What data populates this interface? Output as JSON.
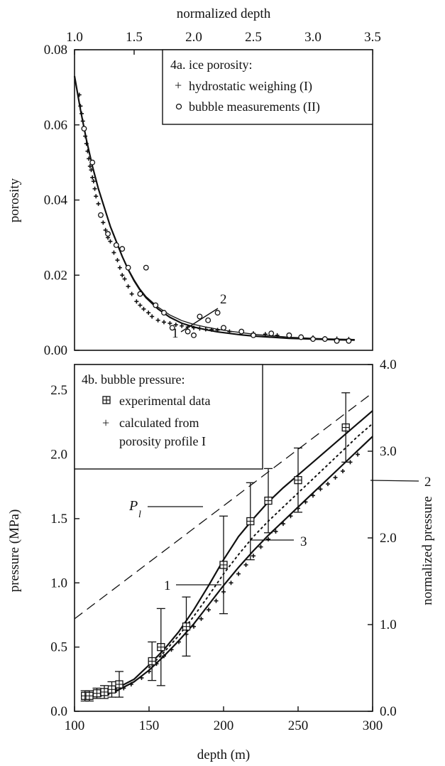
{
  "chart_data": [
    {
      "type": "scatter",
      "panel": "4a",
      "title": "4a. ice porosity:",
      "xlabel": "normalized depth",
      "ylabel": "porosity",
      "xlim": [
        1.0,
        3.5
      ],
      "ylim": [
        0.0,
        0.08
      ],
      "x_ticks": [
        "1.0",
        "1.5",
        "2.0",
        "2.5",
        "3.0",
        "3.5"
      ],
      "y_ticks": [
        "0.00",
        "0.02",
        "0.04",
        "0.06",
        "0.08"
      ],
      "legend_position": "top-right",
      "series": [
        {
          "name": "hydrostatic weighing (I)",
          "marker": "plus",
          "x": [
            1.04,
            1.05,
            1.06,
            1.07,
            1.08,
            1.09,
            1.1,
            1.11,
            1.12,
            1.13,
            1.14,
            1.15,
            1.16,
            1.17,
            1.18,
            1.2,
            1.22,
            1.24,
            1.26,
            1.28,
            1.3,
            1.33,
            1.36,
            1.38,
            1.4,
            1.42,
            1.45,
            1.48,
            1.52,
            1.55,
            1.58,
            1.62,
            1.65,
            1.7,
            1.75,
            1.8,
            1.85,
            1.9,
            1.95,
            2.0,
            2.05,
            2.1,
            2.15,
            2.2,
            2.3,
            2.4,
            2.5,
            2.6,
            2.7,
            2.8,
            2.9,
            3.0,
            3.1,
            3.2,
            3.3
          ],
          "y": [
            0.068,
            0.065,
            0.063,
            0.061,
            0.059,
            0.057,
            0.055,
            0.053,
            0.051,
            0.049,
            0.048,
            0.046,
            0.045,
            0.043,
            0.041,
            0.039,
            0.036,
            0.034,
            0.032,
            0.03,
            0.029,
            0.026,
            0.024,
            0.022,
            0.02,
            0.019,
            0.017,
            0.015,
            0.013,
            0.012,
            0.011,
            0.01,
            0.009,
            0.008,
            0.0075,
            0.0072,
            0.0068,
            0.0065,
            0.0062,
            0.006,
            0.0058,
            0.0056,
            0.0055,
            0.0054,
            0.005,
            0.0047,
            0.0045,
            0.0043,
            0.004,
            0.0038,
            0.0036,
            0.0034,
            0.0032,
            0.0031,
            0.003
          ]
        },
        {
          "name": "bubble measurements (II)",
          "marker": "circle",
          "x": [
            1.08,
            1.15,
            1.22,
            1.28,
            1.35,
            1.4,
            1.45,
            1.55,
            1.6,
            1.68,
            1.75,
            1.82,
            1.95,
            2.0,
            2.05,
            2.12,
            2.2,
            2.25,
            2.4,
            2.5,
            2.65,
            2.8,
            2.9,
            3.0,
            3.1,
            3.2,
            3.3
          ],
          "y": [
            0.059,
            0.05,
            0.036,
            0.031,
            0.028,
            0.027,
            0.022,
            0.015,
            0.022,
            0.012,
            0.01,
            0.006,
            0.005,
            0.004,
            0.009,
            0.008,
            0.01,
            0.006,
            0.005,
            0.004,
            0.0045,
            0.004,
            0.0035,
            0.003,
            0.003,
            0.0025,
            0.0025
          ]
        },
        {
          "name": "",
          "label": "1",
          "marker": "none",
          "x": [
            1.0,
            1.05,
            1.1,
            1.15,
            1.2,
            1.25,
            1.3,
            1.35,
            1.4,
            1.45,
            1.5,
            1.55,
            1.6,
            1.7,
            1.8,
            1.9,
            2.0,
            2.1,
            2.2,
            2.3,
            2.4,
            2.5,
            2.6,
            2.8,
            3.0,
            3.2,
            3.35
          ],
          "y": [
            0.073,
            0.064,
            0.056,
            0.049,
            0.043,
            0.038,
            0.033,
            0.029,
            0.025,
            0.0215,
            0.0185,
            0.016,
            0.014,
            0.011,
            0.0088,
            0.0072,
            0.0062,
            0.0055,
            0.0049,
            0.0045,
            0.0041,
            0.0038,
            0.0036,
            0.0032,
            0.003,
            0.0028,
            0.0027
          ]
        },
        {
          "name": "",
          "label": "2",
          "marker": "none",
          "x": [
            1.0,
            1.05,
            1.1,
            1.15,
            1.2,
            1.25,
            1.3,
            1.35,
            1.4,
            1.45,
            1.5,
            1.55,
            1.6,
            1.7,
            1.8,
            1.9,
            2.0,
            2.1,
            2.2,
            2.3,
            2.4,
            2.5,
            2.6,
            2.8,
            3.0,
            3.2,
            3.35
          ],
          "y": [
            0.073,
            0.064,
            0.056,
            0.049,
            0.043,
            0.038,
            0.033,
            0.029,
            0.025,
            0.0217,
            0.0188,
            0.0163,
            0.0143,
            0.0115,
            0.0094,
            0.0079,
            0.0069,
            0.0062,
            0.0056,
            0.0051,
            0.0047,
            0.0043,
            0.004,
            0.0035,
            0.0032,
            0.003,
            0.0029
          ]
        }
      ],
      "annotations": [
        "1",
        "2"
      ]
    },
    {
      "type": "line",
      "panel": "4b",
      "title": "4b. bubble pressure:",
      "xlabel": "depth (m)",
      "ylabel": "pressure (MPa)",
      "y2label": "normalized pressure",
      "xlim": [
        100,
        300
      ],
      "ylim": [
        0.0,
        2.7
      ],
      "y2lim": [
        0.0,
        4.0
      ],
      "x_ticks": [
        "100",
        "150",
        "200",
        "250",
        "300"
      ],
      "y_ticks": [
        "0.0",
        "0.5",
        "1.0",
        "1.5",
        "2.0",
        "2.5"
      ],
      "y2_ticks": [
        "0.0",
        "1.0",
        "2.0",
        "3.0",
        "4.0"
      ],
      "legend_position": "top-left",
      "legend_labels": [
        "experimental data",
        "calculated from",
        "porosity profile I"
      ],
      "series": [
        {
          "name": "experimental data",
          "marker": "square-cross",
          "x": [
            107,
            110,
            115,
            120,
            125,
            130,
            152,
            158,
            175,
            200,
            218,
            230,
            250,
            282
          ],
          "y": [
            0.12,
            0.12,
            0.14,
            0.15,
            0.17,
            0.21,
            0.39,
            0.5,
            0.66,
            1.14,
            1.48,
            1.64,
            1.8,
            2.21
          ],
          "err": [
            0.04,
            0.04,
            0.04,
            0.05,
            0.06,
            0.1,
            0.15,
            0.3,
            0.23,
            0.38,
            0.3,
            0.25,
            0.25,
            0.27
          ]
        },
        {
          "name": "calculated from porosity profile I",
          "marker": "plus",
          "x": [
            108,
            112,
            118,
            123,
            128,
            133,
            138,
            145,
            150,
            155,
            160,
            165,
            170,
            175,
            180,
            185,
            190,
            195,
            200,
            205,
            210,
            215,
            220,
            225,
            230,
            235,
            240,
            245,
            250,
            255,
            260,
            265,
            270,
            275,
            280,
            285,
            290
          ],
          "y": [
            0.11,
            0.12,
            0.13,
            0.14,
            0.16,
            0.18,
            0.21,
            0.26,
            0.31,
            0.37,
            0.43,
            0.48,
            0.54,
            0.6,
            0.66,
            0.72,
            0.79,
            0.86,
            0.93,
            1.0,
            1.07,
            1.14,
            1.21,
            1.28,
            1.34,
            1.4,
            1.46,
            1.52,
            1.58,
            1.63,
            1.68,
            1.73,
            1.77,
            1.82,
            1.87,
            1.94,
            2.0
          ]
        },
        {
          "name": "",
          "label": "1",
          "style": "solid",
          "x": [
            107,
            120,
            130,
            140,
            150,
            160,
            170,
            180,
            190,
            200,
            210,
            220,
            230,
            240,
            250,
            260,
            270,
            280,
            290,
            300
          ],
          "y": [
            0.12,
            0.15,
            0.19,
            0.25,
            0.36,
            0.48,
            0.62,
            0.79,
            0.98,
            1.18,
            1.36,
            1.5,
            1.63,
            1.74,
            1.84,
            1.94,
            2.04,
            2.14,
            2.24,
            2.34
          ]
        },
        {
          "name": "",
          "label": "2",
          "style": "solid",
          "x": [
            107,
            120,
            130,
            140,
            150,
            160,
            170,
            180,
            190,
            200,
            210,
            220,
            230,
            240,
            250,
            260,
            270,
            280,
            290,
            300
          ],
          "y": [
            0.11,
            0.13,
            0.17,
            0.23,
            0.32,
            0.43,
            0.55,
            0.68,
            0.83,
            0.98,
            1.12,
            1.25,
            1.37,
            1.48,
            1.59,
            1.7,
            1.81,
            1.92,
            2.03,
            2.14
          ]
        },
        {
          "name": "",
          "label": "3",
          "style": "dotted",
          "x": [
            150,
            160,
            170,
            180,
            190,
            200,
            210,
            220,
            230,
            240,
            250,
            260,
            270,
            280,
            290,
            300
          ],
          "y": [
            0.34,
            0.46,
            0.59,
            0.74,
            0.9,
            1.07,
            1.22,
            1.36,
            1.48,
            1.59,
            1.7,
            1.81,
            1.92,
            2.03,
            2.14,
            2.24
          ]
        },
        {
          "name": "",
          "label": "P_l",
          "style": "dashed",
          "x": [
            100,
            300
          ],
          "y": [
            0.72,
            2.48
          ]
        }
      ],
      "annotations": [
        "P",
        "l",
        "1",
        "2",
        "3"
      ]
    }
  ],
  "legend_a": {
    "title": "4a. ice porosity:",
    "items": [
      "hydrostatic weighing (I)",
      "bubble measurements (II)"
    ]
  },
  "legend_b": {
    "title": "4b. bubble pressure:",
    "item1": "experimental data",
    "item2_line1": "calculated from",
    "item2_line2": "porosity profile I"
  },
  "labels_a": {
    "top_axis": "normalized depth",
    "left_axis": "porosity",
    "curve1": "1",
    "curve2": "2"
  },
  "labels_b": {
    "bottom_axis": "depth (m)",
    "left_axis": "pressure (MPa)",
    "right_axis": "normalized pressure",
    "pl_main": "P",
    "pl_sub": "l",
    "curve1": "1",
    "curve2": "2",
    "curve3": "3"
  }
}
